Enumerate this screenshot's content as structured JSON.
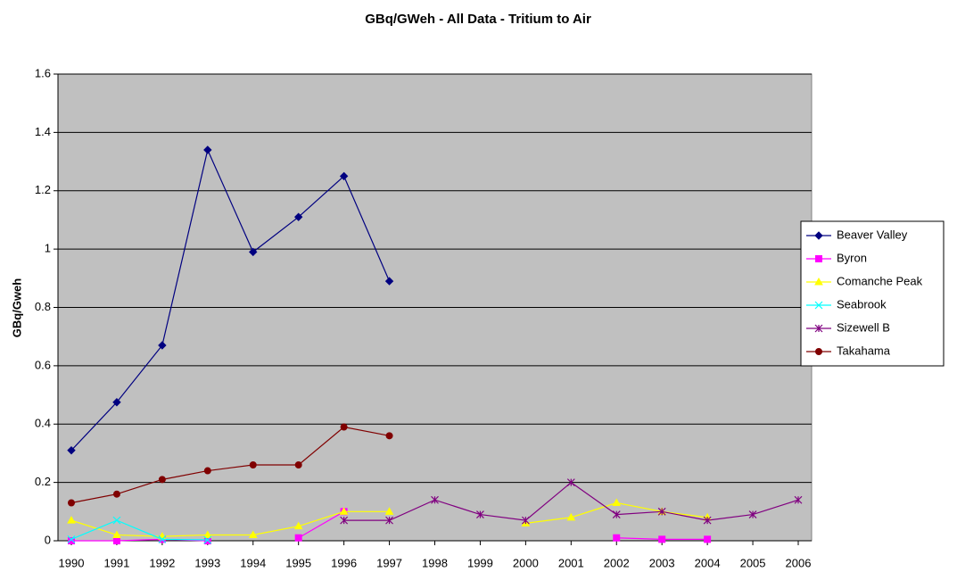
{
  "chart_data": {
    "type": "line",
    "title": "GBq/GWeh - All Data - Tritium to Air",
    "y_label": "GBq/Gweh",
    "categories": [
      "1990",
      "1991",
      "1992",
      "1993",
      "1994",
      "1995",
      "1996",
      "1997",
      "1998",
      "1999",
      "2000",
      "2001",
      "2002",
      "2003",
      "2004",
      "2005",
      "2006"
    ],
    "series": [
      {
        "name": "Beaver Valley",
        "color": "#000080",
        "marker": "diamond",
        "values": [
          0.31,
          0.475,
          0.67,
          1.34,
          0.99,
          1.11,
          1.25,
          0.89,
          null,
          null,
          null,
          null,
          null,
          null,
          null,
          null,
          null
        ]
      },
      {
        "name": "Byron",
        "color": "#ff00ff",
        "marker": "square",
        "values": [
          0,
          0,
          0.005,
          0,
          null,
          0.01,
          0.1,
          null,
          null,
          null,
          null,
          null,
          0.01,
          0.005,
          0.005,
          null,
          null
        ]
      },
      {
        "name": "Comanche Peak",
        "color": "#ffff00",
        "marker": "triangle",
        "values": [
          0.07,
          0.02,
          0.015,
          0.02,
          0.02,
          0.05,
          0.1,
          0.1,
          null,
          null,
          0.06,
          0.08,
          0.13,
          0.1,
          0.08,
          null,
          null
        ]
      },
      {
        "name": "Seabrook",
        "color": "#00ffff",
        "marker": "x",
        "values": [
          0.005,
          0.07,
          0.005,
          0.003,
          null,
          null,
          null,
          null,
          null,
          null,
          null,
          null,
          null,
          null,
          null,
          null,
          null
        ]
      },
      {
        "name": "Sizewell B",
        "color": "#800080",
        "marker": "star",
        "values": [
          null,
          null,
          null,
          null,
          null,
          null,
          0.07,
          0.07,
          0.14,
          0.09,
          0.07,
          0.2,
          0.09,
          0.1,
          0.07,
          0.09,
          0.14
        ]
      },
      {
        "name": "Takahama",
        "color": "#800000",
        "marker": "circle",
        "values": [
          0.13,
          0.16,
          0.21,
          0.24,
          0.26,
          0.26,
          0.39,
          0.36,
          null,
          null,
          null,
          null,
          null,
          null,
          null,
          null,
          null
        ]
      }
    ],
    "ylim": [
      0,
      1.6
    ],
    "yticks": [
      0,
      0.2,
      0.4,
      0.6,
      0.8,
      1,
      1.2,
      1.4,
      1.6
    ],
    "grid": true,
    "legend": "right",
    "plot_background": "#c0c0c0"
  }
}
